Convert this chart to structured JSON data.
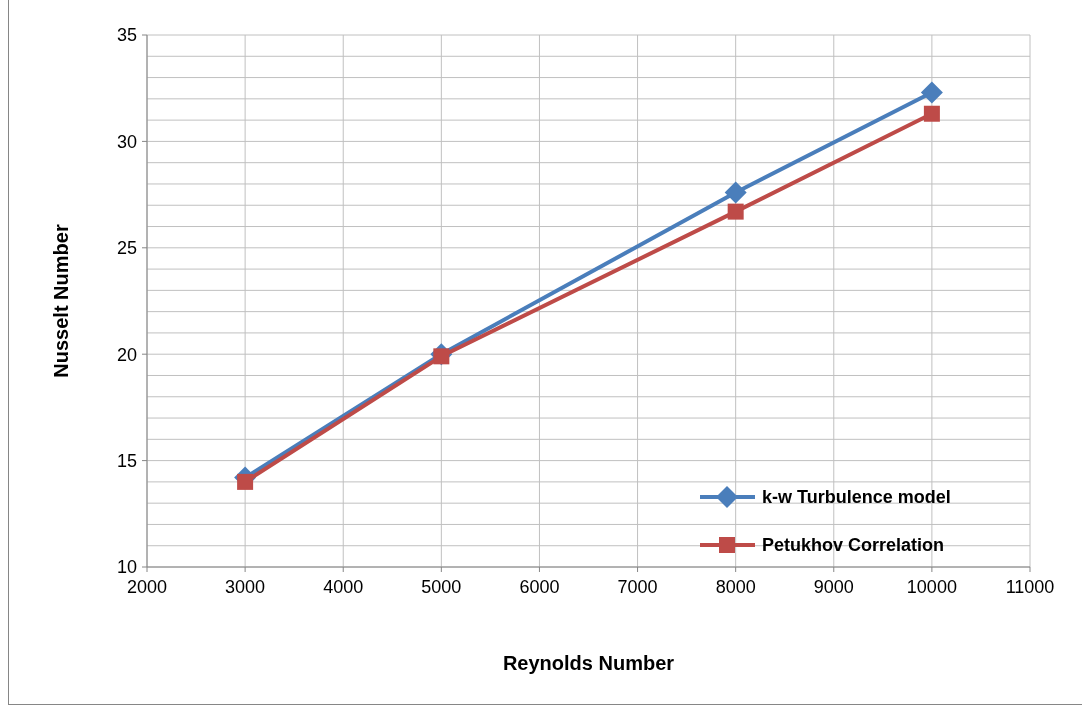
{
  "chart_data": {
    "type": "line",
    "xlabel": "Reynolds Number",
    "ylabel": "Nusselt Number",
    "xlim": [
      2000,
      11000
    ],
    "xticks": [
      2000,
      3000,
      4000,
      5000,
      6000,
      7000,
      8000,
      9000,
      10000,
      11000
    ],
    "ylim": [
      10,
      35
    ],
    "yticks": [
      10,
      {
        "value": 11,
        "label": null
      },
      {
        "value": 12,
        "label": null
      },
      {
        "value": 13,
        "label": null
      },
      {
        "value": 14,
        "label": null
      },
      15,
      {
        "value": 16,
        "label": null
      },
      {
        "value": 17,
        "label": null
      },
      {
        "value": 18,
        "label": null
      },
      {
        "value": 19,
        "label": null
      },
      20,
      {
        "value": 21,
        "label": null
      },
      {
        "value": 22,
        "label": null
      },
      {
        "value": 23,
        "label": null
      },
      {
        "value": 24,
        "label": null
      },
      25,
      {
        "value": 26,
        "label": null
      },
      {
        "value": 27,
        "label": null
      },
      {
        "value": 28,
        "label": null
      },
      {
        "value": 29,
        "label": null
      },
      30,
      {
        "value": 31,
        "label": null
      },
      {
        "value": 32,
        "label": null
      },
      {
        "value": 33,
        "label": null
      },
      {
        "value": 34,
        "label": null
      },
      35
    ],
    "grid": true,
    "legend": "bottom right",
    "series": [
      {
        "name": "k-w Turbulence model",
        "color": "#4a7ebb",
        "marker": "diamond",
        "x": [
          3000,
          5000,
          8000,
          10000
        ],
        "values": [
          14.2,
          20.0,
          27.6,
          32.3
        ]
      },
      {
        "name": "Petukhov Correlation",
        "color": "#be4b48",
        "marker": "square",
        "x": [
          3000,
          5000,
          8000,
          10000
        ],
        "values": [
          14.0,
          19.9,
          26.7,
          31.3
        ]
      }
    ]
  }
}
